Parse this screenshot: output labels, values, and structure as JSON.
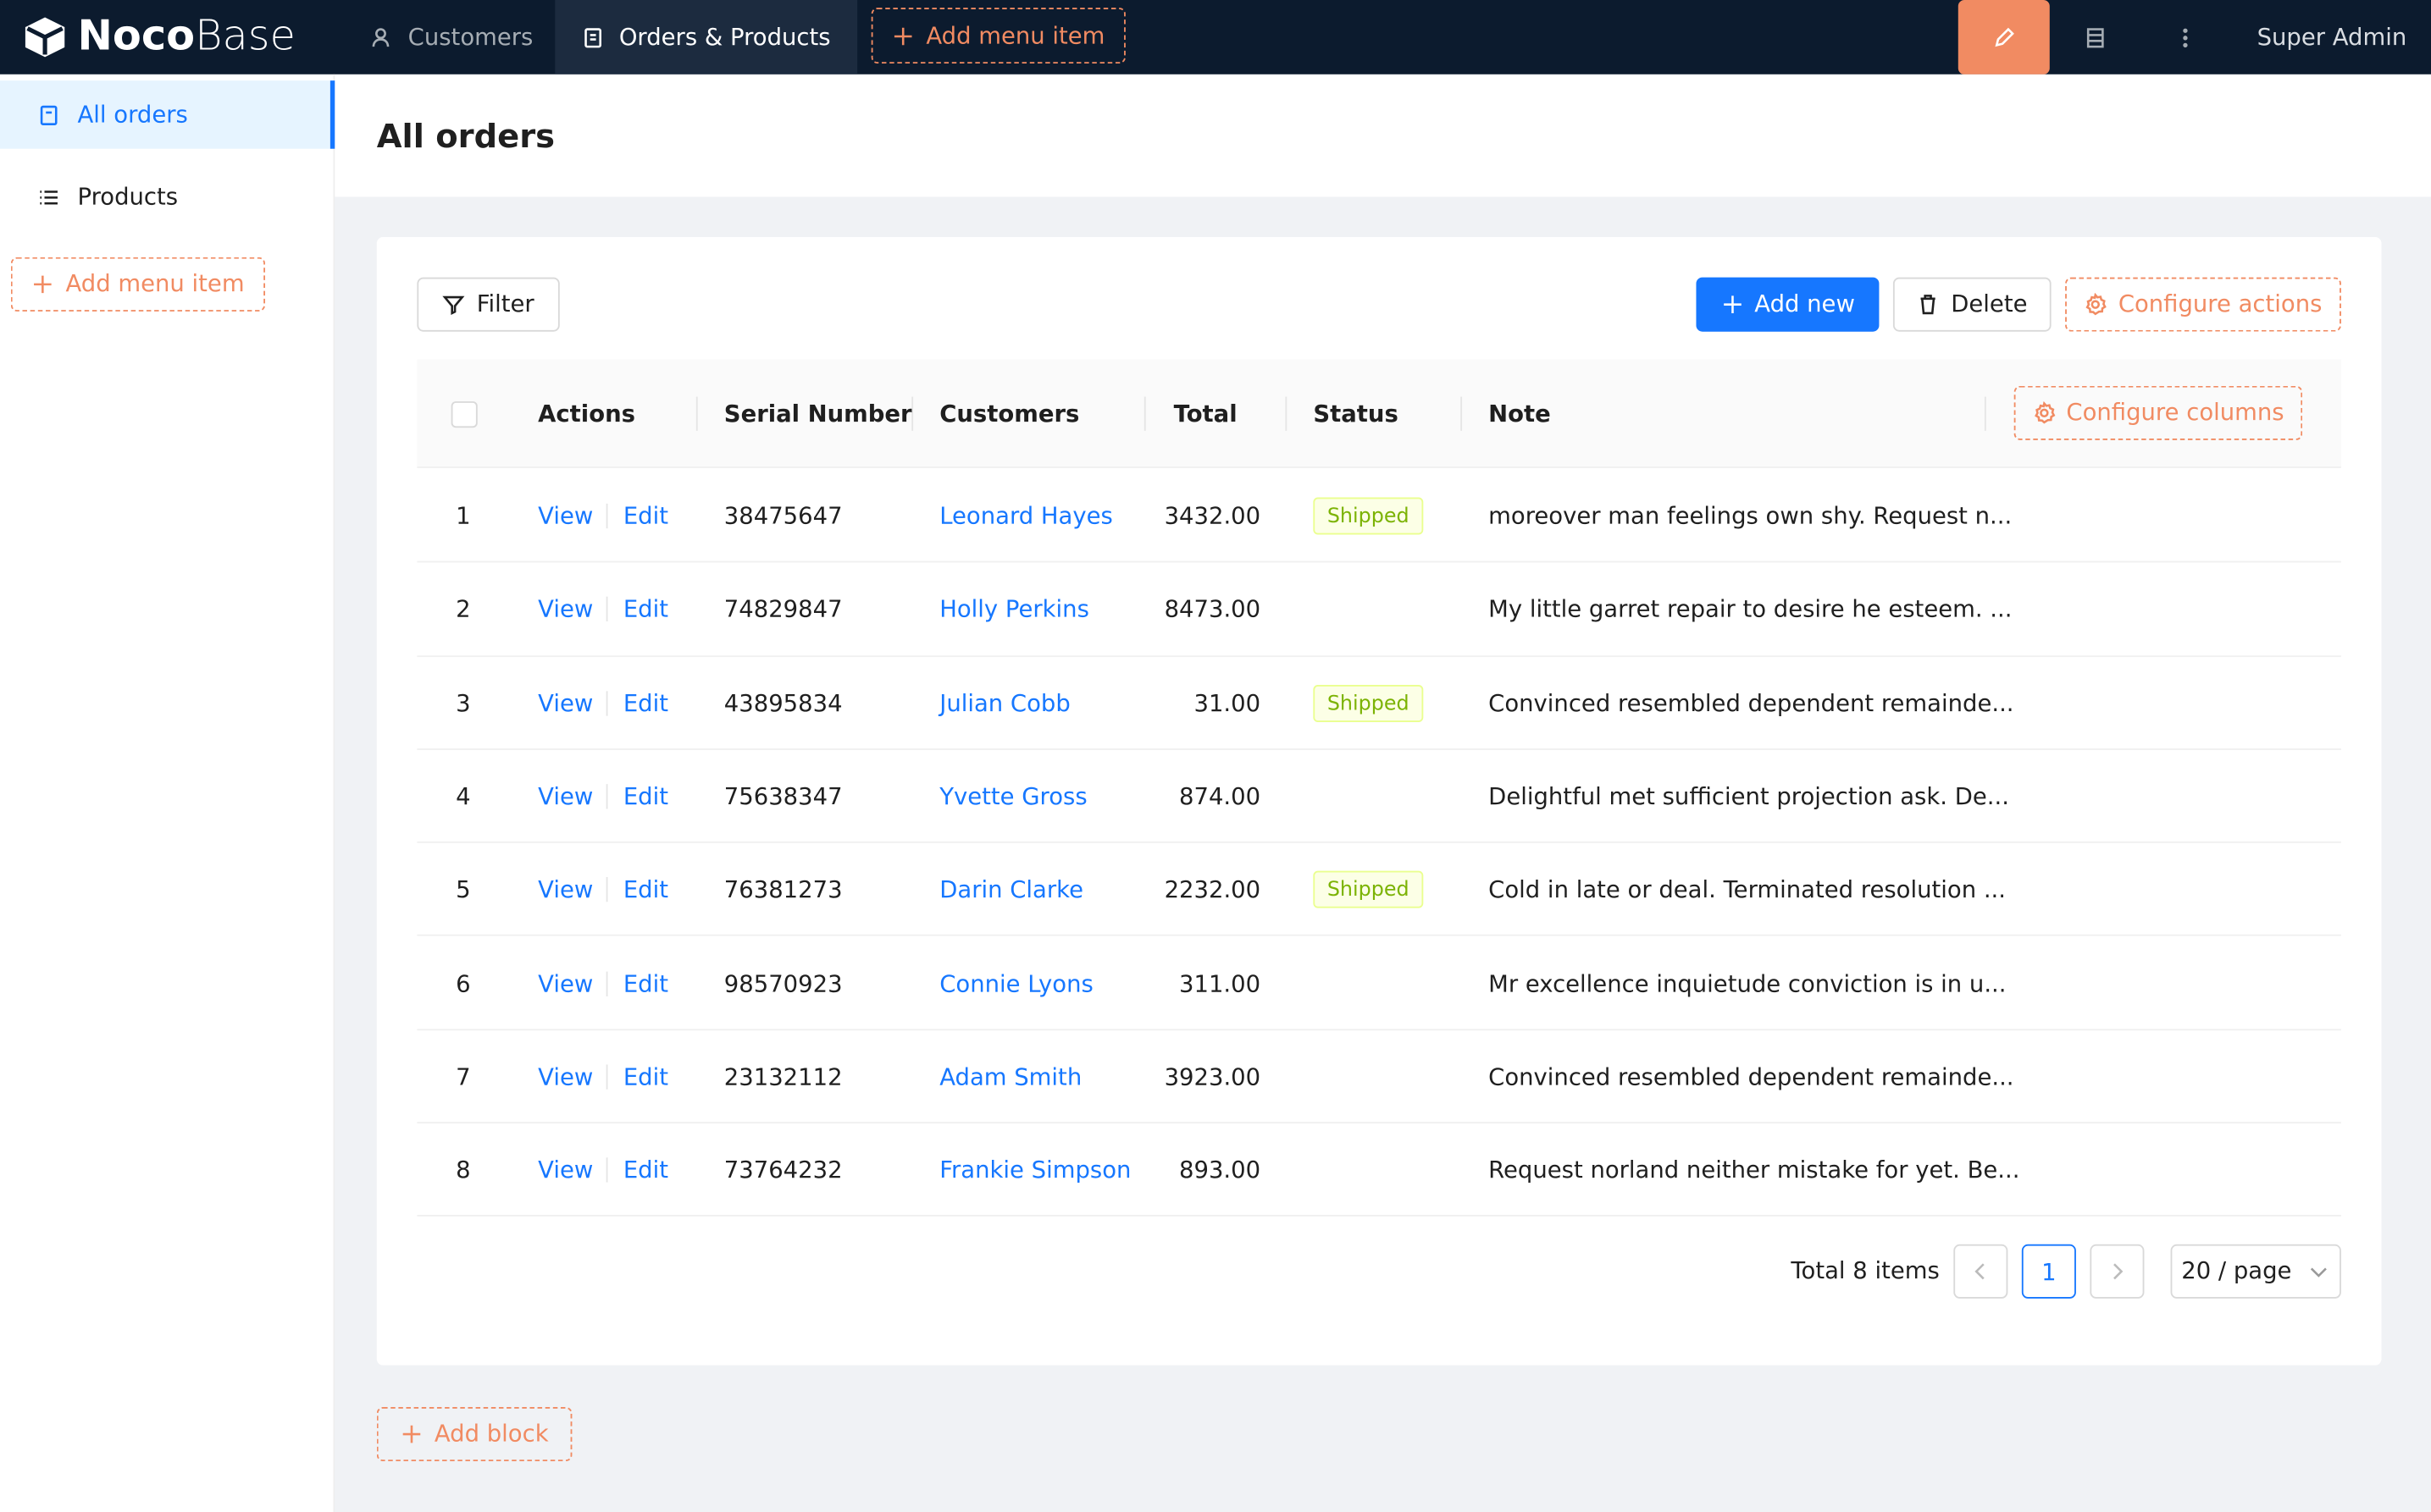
{
  "brand": {
    "bold": "Noco",
    "light": "Base"
  },
  "top_menu": {
    "items": [
      "Customers",
      "Orders & Products"
    ],
    "add_item": "Add menu item",
    "user": "Super Admin"
  },
  "sidebar": {
    "items": [
      "All orders",
      "Products"
    ],
    "add_item": "Add menu item"
  },
  "page": {
    "title": "All orders"
  },
  "toolbar": {
    "filter": "Filter",
    "add_new": "Add new",
    "delete": "Delete",
    "configure_actions": "Configure actions"
  },
  "table": {
    "headers": [
      "Actions",
      "Serial Number",
      "Customers",
      "Total",
      "Status",
      "Note"
    ],
    "configure_columns": "Configure columns",
    "rows": [
      [
        "1",
        "View",
        "Edit",
        "38475647",
        "Leonard Hayes",
        "3432.00",
        "Shipped",
        "moreover man feelings own shy. Request n..."
      ],
      [
        "2",
        "View",
        "Edit",
        "74829847",
        "Holly Perkins",
        "8473.00",
        null,
        "My little garret repair to desire he esteem. ..."
      ],
      [
        "3",
        "View",
        "Edit",
        "43895834",
        "Julian Cobb",
        "31.00",
        "Shipped",
        "Convinced resembled dependent remainde..."
      ],
      [
        "4",
        "View",
        "Edit",
        "75638347",
        "Yvette Gross",
        "874.00",
        null,
        "Delightful met sufficient projection ask. De..."
      ],
      [
        "5",
        "View",
        "Edit",
        "76381273",
        "Darin Clarke",
        "2232.00",
        "Shipped",
        "Cold in late or deal. Terminated resolution ..."
      ],
      [
        "6",
        "View",
        "Edit",
        "98570923",
        "Connie Lyons",
        "311.00",
        null,
        "Mr excellence inquietude conviction is in u..."
      ],
      [
        "7",
        "View",
        "Edit",
        "23132112",
        "Adam Smith",
        "3923.00",
        null,
        "Convinced resembled dependent remainde..."
      ],
      [
        "8",
        "View",
        "Edit",
        "73764232",
        "Frankie Simpson",
        "893.00",
        null,
        "Request norland neither mistake for yet. Be..."
      ]
    ]
  },
  "pagination": {
    "total": "Total 8 items",
    "page": "1",
    "page_size": "20 / page"
  },
  "add_block": "Add block"
}
